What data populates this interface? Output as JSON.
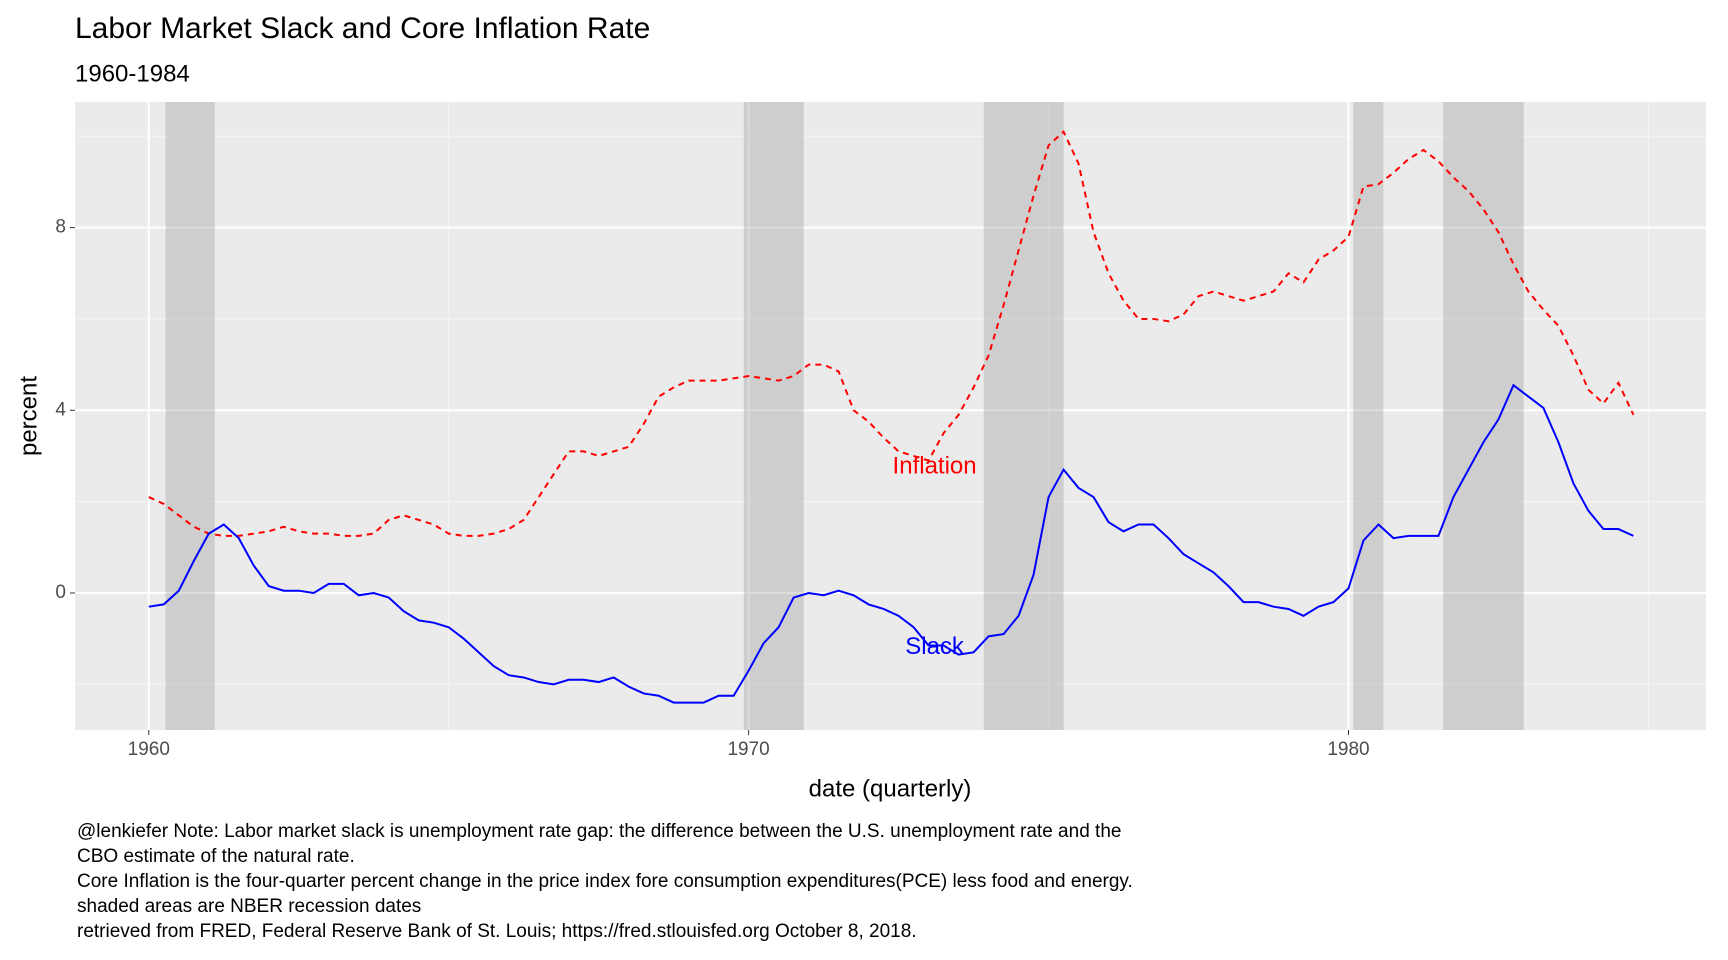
{
  "chart_data": {
    "type": "line",
    "title": "Labor Market Slack and Core Inflation Rate",
    "subtitle": "1960-1984",
    "x_label": "date (quarterly)",
    "y_label": "percent",
    "notes": [
      "@lenkiefer Note: Labor market slack is unemployment rate gap: the difference between the U.S. unemployment rate and the",
      "CBO estimate of the natural rate.",
      "Core Inflation is the four-quarter percent change in the price index fore consumption expenditures(PCE) less food and energy.",
      "shaded areas are NBER recession dates",
      "retrieved from FRED, Federal Reserve Bank of St. Louis; https://fred.stlouisfed.org October 8, 2018."
    ],
    "xlim": [
      1958.77,
      1985.96
    ],
    "ylim": [
      -3.0,
      10.75
    ],
    "xticks": [
      1960,
      1970,
      1980
    ],
    "yticks": [
      0,
      4,
      8
    ],
    "xminor": [
      1965,
      1975,
      1985
    ],
    "yminor": [
      -2,
      2,
      6,
      10
    ],
    "grid": true,
    "recessions": [
      [
        1960.28,
        1961.1
      ],
      [
        1969.92,
        1970.92
      ],
      [
        1973.92,
        1975.25
      ],
      [
        1980.08,
        1980.58
      ],
      [
        1981.58,
        1982.92
      ]
    ],
    "x": [
      1960,
      1960.25,
      1960.5,
      1960.75,
      1961,
      1961.25,
      1961.5,
      1961.75,
      1962,
      1962.25,
      1962.5,
      1962.75,
      1963,
      1963.25,
      1963.5,
      1963.75,
      1964,
      1964.25,
      1964.5,
      1964.75,
      1965,
      1965.25,
      1965.5,
      1965.75,
      1966,
      1966.25,
      1966.5,
      1966.75,
      1967,
      1967.25,
      1967.5,
      1967.75,
      1968,
      1968.25,
      1968.5,
      1968.75,
      1969,
      1969.25,
      1969.5,
      1969.75,
      1970,
      1970.25,
      1970.5,
      1970.75,
      1971,
      1971.25,
      1971.5,
      1971.75,
      1972,
      1972.25,
      1972.5,
      1972.75,
      1973,
      1973.25,
      1973.5,
      1973.75,
      1974,
      1974.25,
      1974.5,
      1974.75,
      1975,
      1975.25,
      1975.5,
      1975.75,
      1976,
      1976.25,
      1976.5,
      1976.75,
      1977,
      1977.25,
      1977.5,
      1977.75,
      1978,
      1978.25,
      1978.5,
      1978.75,
      1979,
      1979.25,
      1979.5,
      1979.75,
      1980,
      1980.25,
      1980.5,
      1980.75,
      1981,
      1981.25,
      1981.5,
      1981.75,
      1982,
      1982.25,
      1982.5,
      1982.75,
      1983,
      1983.25,
      1983.5,
      1983.75,
      1984,
      1984.25,
      1984.5,
      1984.75
    ],
    "series": [
      {
        "name": "Inflation",
        "color": "#ff0000",
        "dashed": true,
        "values": [
          2.1,
          1.95,
          1.7,
          1.45,
          1.3,
          1.25,
          1.25,
          1.3,
          1.35,
          1.45,
          1.35,
          1.3,
          1.3,
          1.25,
          1.25,
          1.3,
          1.6,
          1.7,
          1.6,
          1.5,
          1.3,
          1.25,
          1.25,
          1.3,
          1.4,
          1.6,
          2.1,
          2.6,
          3.1,
          3.1,
          3.0,
          3.1,
          3.2,
          3.7,
          4.3,
          4.5,
          4.65,
          4.65,
          4.65,
          4.7,
          4.75,
          4.7,
          4.65,
          4.75,
          5.0,
          5.0,
          4.85,
          4.0,
          3.75,
          3.4,
          3.1,
          3.0,
          2.9,
          3.5,
          3.9,
          4.5,
          5.2,
          6.3,
          7.5,
          8.7,
          9.8,
          10.1,
          9.4,
          7.9,
          7.0,
          6.4,
          6.0,
          6.0,
          5.95,
          6.1,
          6.5,
          6.6,
          6.5,
          6.4,
          6.5,
          6.6,
          7.0,
          6.8,
          7.3,
          7.5,
          7.8,
          8.9,
          8.95,
          9.2,
          9.5,
          9.7,
          9.45,
          9.1,
          8.8,
          8.4,
          7.9,
          7.2,
          6.6,
          6.2,
          5.85,
          5.2,
          4.45,
          4.15,
          4.6,
          3.9
        ]
      },
      {
        "name": "Slack",
        "color": "#0000ff",
        "dashed": false,
        "values": [
          -0.3,
          -0.25,
          0.05,
          0.7,
          1.3,
          1.5,
          1.2,
          0.6,
          0.15,
          0.05,
          0.05,
          0.0,
          0.2,
          0.2,
          -0.05,
          0.0,
          -0.1,
          -0.4,
          -0.6,
          -0.65,
          -0.75,
          -1.0,
          -1.3,
          -1.6,
          -1.8,
          -1.85,
          -1.95,
          -2.0,
          -1.9,
          -1.9,
          -1.95,
          -1.85,
          -2.05,
          -2.2,
          -2.25,
          -2.4,
          -2.4,
          -2.4,
          -2.25,
          -2.25,
          -1.7,
          -1.1,
          -0.75,
          -0.1,
          0.0,
          -0.05,
          0.05,
          -0.05,
          -0.25,
          -0.35,
          -0.5,
          -0.75,
          -1.15,
          -1.15,
          -1.35,
          -1.3,
          -0.95,
          -0.9,
          -0.5,
          0.4,
          2.1,
          2.7,
          2.3,
          2.1,
          1.55,
          1.35,
          1.5,
          1.5,
          1.2,
          0.85,
          0.65,
          0.45,
          0.15,
          -0.2,
          -0.2,
          -0.3,
          -0.35,
          -0.5,
          -0.3,
          -0.2,
          0.1,
          1.15,
          1.5,
          1.2,
          1.25,
          1.25,
          1.25,
          2.1,
          2.7,
          3.3,
          3.8,
          4.55,
          4.3,
          4.05,
          3.3,
          2.4,
          1.8,
          1.4,
          1.4,
          1.25
        ]
      }
    ],
    "annotations": [
      {
        "text": "Inflation",
        "x": 1973.1,
        "y": 2.75,
        "color": "#ff0000"
      },
      {
        "text": "Slack",
        "x": 1973.1,
        "y": -1.2,
        "color": "#0000ff"
      }
    ]
  }
}
